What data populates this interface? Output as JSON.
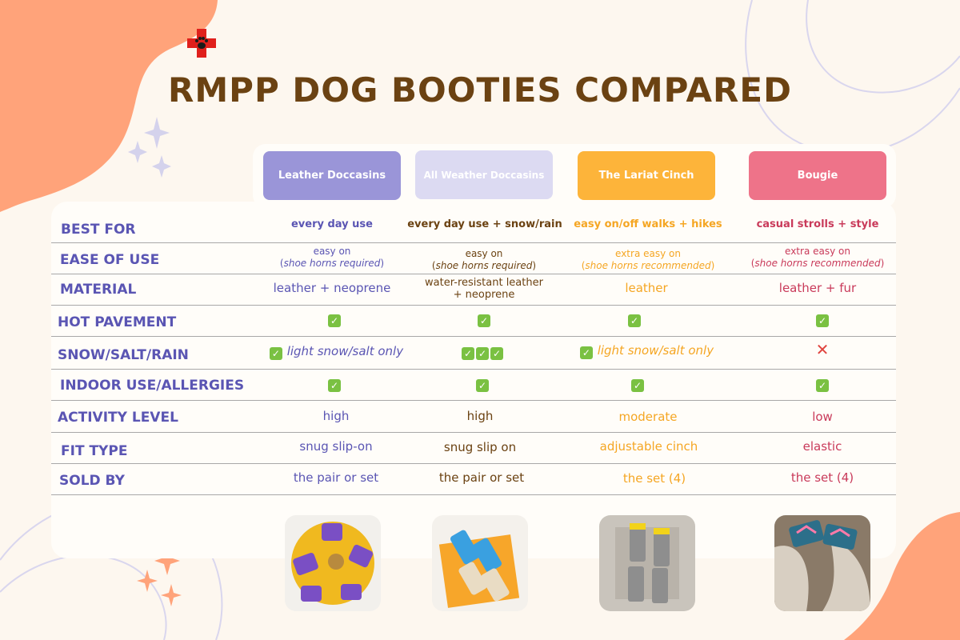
{
  "title": "RMPP DOG BOOTIES COMPARED",
  "colors": {
    "background": "#fdf7ef",
    "title": "#6b4212",
    "row_label": "#5a55b3",
    "accent_orange": "#ffa37a",
    "col1": "#9a95d8",
    "col2": "#dcdaf2",
    "col3": "#fdb43a",
    "col4": "#ee7389",
    "check": "#7ac142",
    "cross": "#e0443f"
  },
  "logo": {
    "icon": "red-cross-paw-icon"
  },
  "columns": [
    "Leather Doccasins",
    "All Weather Doccasins",
    "The Lariat Cinch",
    "Bougie"
  ],
  "rows": {
    "best_for": {
      "label": "BEST FOR",
      "values": [
        "every day use",
        "every day use + snow/rain",
        "easy on/off walks + hikes",
        "casual strolls + style"
      ]
    },
    "ease_of_use": {
      "label": "EASE OF USE",
      "values": [
        {
          "main": "easy on",
          "note": "shoe horns required"
        },
        {
          "main": "easy on",
          "note": "shoe horns required"
        },
        {
          "main": "extra easy on",
          "note": "shoe horns recommended"
        },
        {
          "main": "extra easy on",
          "note": "shoe horns recommended"
        }
      ]
    },
    "material": {
      "label": "MATERIAL",
      "values": [
        "leather + neoprene",
        "water-resistant leather",
        "leather",
        "leather + fur"
      ],
      "extra_line": "+ neoprene"
    },
    "hot_pavement": {
      "label": "HOT PAVEMENT",
      "values": [
        "check",
        "check",
        "check",
        "check"
      ]
    },
    "snow_salt_rain": {
      "label": "SNOW/SALT/RAIN",
      "values": [
        {
          "icon": "check",
          "text": "light snow/salt only"
        },
        {
          "icon": "triple-check",
          "text": ""
        },
        {
          "icon": "check",
          "text": "light snow/salt only"
        },
        {
          "icon": "cross",
          "text": ""
        }
      ]
    },
    "indoor_use": {
      "label": "INDOOR USE/ALLERGIES",
      "values": [
        "check",
        "check",
        "check",
        "check"
      ]
    },
    "activity_level": {
      "label": "ACTIVITY LEVEL",
      "values": [
        "high",
        "high",
        "moderate",
        "low"
      ]
    },
    "fit_type": {
      "label": "FIT TYPE",
      "values": [
        "snug slip-on",
        "snug slip on",
        "adjustable cinch",
        "elastic"
      ]
    },
    "sold_by": {
      "label": "SOLD BY",
      "values": [
        "the pair or set",
        "the pair or set",
        "the set (4)",
        "the set (4)"
      ]
    }
  },
  "photos": [
    "leather-doccasins-photo",
    "all-weather-doccasins-photo",
    "lariat-cinch-photo",
    "bougie-photo"
  ]
}
